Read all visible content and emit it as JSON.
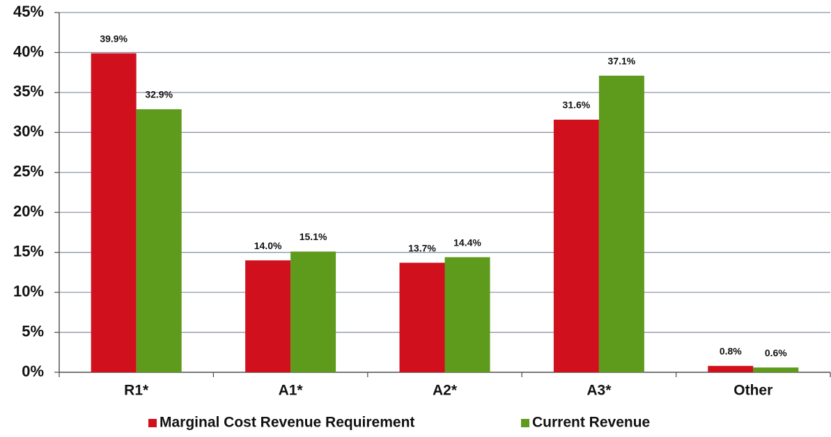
{
  "chart_data": {
    "type": "bar",
    "categories": [
      "R1*",
      "A1*",
      "A2*",
      "A3*",
      "Other"
    ],
    "series": [
      {
        "name": "Marginal Cost Revenue Requirement",
        "color": "#d0101c",
        "values": [
          39.9,
          14.0,
          13.7,
          31.6,
          0.8
        ],
        "value_labels": [
          "39.9%",
          "14.0%",
          "13.7%",
          "31.6%",
          "0.8%"
        ]
      },
      {
        "name": "Current Revenue",
        "color": "#5e9a1c",
        "values": [
          32.9,
          15.1,
          14.4,
          37.1,
          0.6
        ],
        "value_labels": [
          "32.9%",
          "15.1%",
          "14.4%",
          "37.1%",
          "0.6%"
        ]
      }
    ],
    "ylim": [
      0,
      45
    ],
    "yticks": [
      {
        "value": 0,
        "label": "0%"
      },
      {
        "value": 5,
        "label": "5%"
      },
      {
        "value": 10,
        "label": "10%"
      },
      {
        "value": 15,
        "label": "15%"
      },
      {
        "value": 20,
        "label": "20%"
      },
      {
        "value": 25,
        "label": "25%"
      },
      {
        "value": 30,
        "label": "30%"
      },
      {
        "value": 35,
        "label": "35%"
      },
      {
        "value": 40,
        "label": "40%"
      },
      {
        "value": 45,
        "label": "45%"
      }
    ],
    "grid": true,
    "legend": "bottom"
  }
}
